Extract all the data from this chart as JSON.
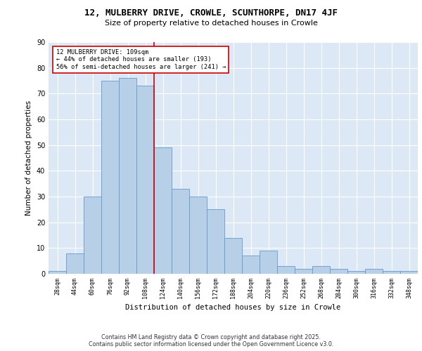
{
  "title1": "12, MULBERRY DRIVE, CROWLE, SCUNTHORPE, DN17 4JF",
  "title2": "Size of property relative to detached houses in Crowle",
  "xlabel": "Distribution of detached houses by size in Crowle",
  "ylabel": "Number of detached properties",
  "bar_labels": [
    "28sqm",
    "44sqm",
    "60sqm",
    "76sqm",
    "92sqm",
    "108sqm",
    "124sqm",
    "140sqm",
    "156sqm",
    "172sqm",
    "188sqm",
    "204sqm",
    "220sqm",
    "236sqm",
    "252sqm",
    "268sqm",
    "284sqm",
    "300sqm",
    "316sqm",
    "332sqm",
    "348sqm"
  ],
  "bar_heights": [
    1,
    8,
    30,
    75,
    76,
    73,
    49,
    33,
    30,
    25,
    14,
    7,
    9,
    3,
    2,
    3,
    2,
    1,
    2,
    1,
    1
  ],
  "bar_color": "#b8cfe8",
  "bar_edge_color": "#6699cc",
  "vline_color": "#cc0000",
  "annotation_title": "12 MULBERRY DRIVE: 109sqm",
  "annotation_line2": "← 44% of detached houses are smaller (193)",
  "annotation_line3": "56% of semi-detached houses are larger (241) →",
  "annotation_box_color": "#ffffff",
  "annotation_box_edge": "#cc0000",
  "background_color": "#dce8f5",
  "grid_color": "#ffffff",
  "ylim": [
    0,
    90
  ],
  "yticks": [
    0,
    10,
    20,
    30,
    40,
    50,
    60,
    70,
    80,
    90
  ],
  "footer1": "Contains HM Land Registry data © Crown copyright and database right 2025.",
  "footer2": "Contains public sector information licensed under the Open Government Licence v3.0."
}
